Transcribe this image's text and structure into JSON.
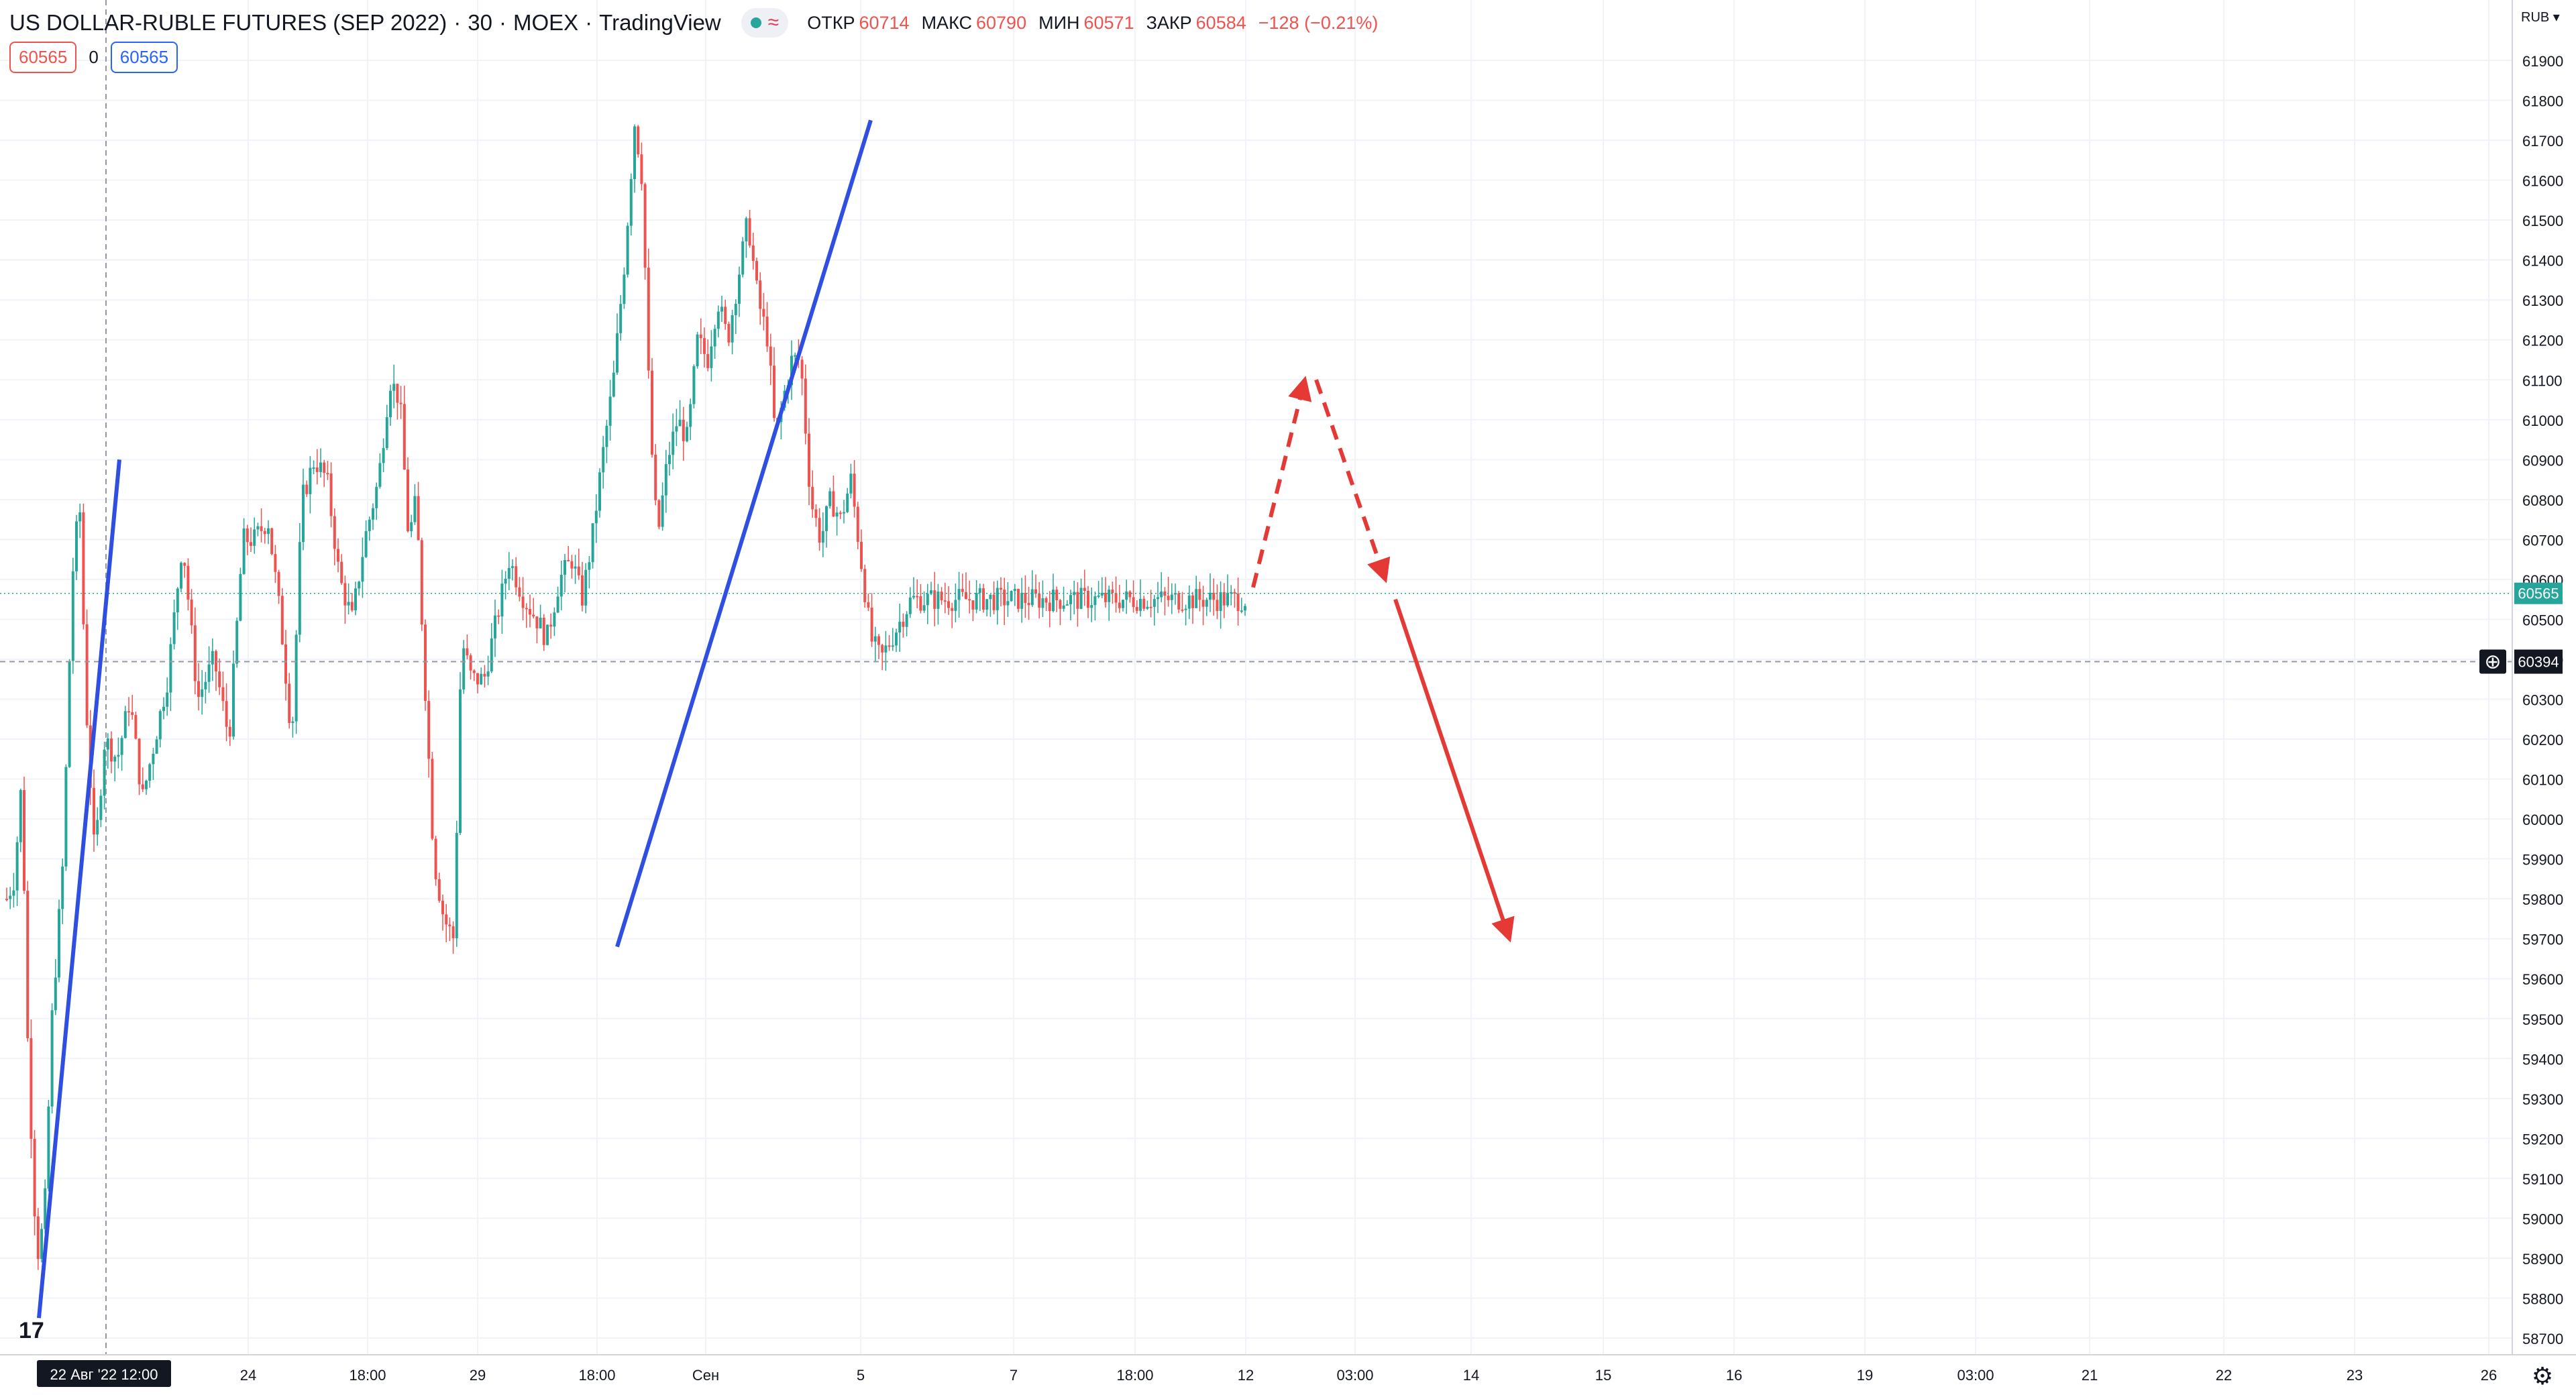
{
  "header": {
    "title": "US DOLLAR-RUBLE FUTURES (SEP 2022)",
    "interval": "30",
    "exchange": "MOEX",
    "source": "TradingView",
    "ohlc": {
      "open_label": "ОТКР",
      "open": "60714",
      "high_label": "МАКС",
      "high": "60790",
      "low_label": "МИН",
      "low": "60571",
      "close_label": "ЗАКР",
      "close": "60584",
      "change": "−128 (−0.21%)"
    },
    "sell_price": "60565",
    "spread": "0",
    "buy_price": "60565"
  },
  "colors": {
    "up": "#26a69a",
    "down": "#ef5350",
    "trendline": "#2f4fe0",
    "forecast": "#e53935",
    "grid": "#f0f3fa",
    "last_price_bg": "#26a69a"
  },
  "chart_data": {
    "type": "candlestick",
    "symbol": "US DOLLAR-RUBLE FUTURES (SEP 2022)",
    "currency": "RUB",
    "ylim": [
      58700,
      61950
    ],
    "y_ticks": [
      58700,
      58800,
      58900,
      59000,
      59100,
      59200,
      59300,
      59400,
      59500,
      59600,
      59700,
      59800,
      59900,
      60000,
      60100,
      60200,
      60300,
      60400,
      60500,
      60600,
      60700,
      60800,
      60900,
      61000,
      61100,
      61200,
      61300,
      61400,
      61500,
      61600,
      61700,
      61800,
      61900
    ],
    "x_ticks": [
      "22 Авг '22",
      "12:00",
      "24",
      "18:00",
      "29",
      "18:00",
      "Сен",
      "5",
      "7",
      "18:00",
      "12",
      "03:00",
      "14",
      "15",
      "16",
      "19",
      "03:00",
      "21",
      "22",
      "23",
      "26"
    ],
    "crosshair_x_label": "22 Авг '22  12:00",
    "last_price": 60565,
    "crosshair_price": 60394,
    "price_series_anchors": [
      [
        0.0,
        59800
      ],
      [
        0.006,
        59850
      ],
      [
        0.012,
        60100
      ],
      [
        0.017,
        59400
      ],
      [
        0.024,
        58900
      ],
      [
        0.03,
        59000
      ],
      [
        0.036,
        59500
      ],
      [
        0.045,
        59900
      ],
      [
        0.052,
        60600
      ],
      [
        0.058,
        60800
      ],
      [
        0.063,
        60300
      ],
      [
        0.07,
        59900
      ],
      [
        0.078,
        60200
      ],
      [
        0.088,
        60150
      ],
      [
        0.098,
        60300
      ],
      [
        0.108,
        60050
      ],
      [
        0.118,
        60200
      ],
      [
        0.128,
        60350
      ],
      [
        0.14,
        60700
      ],
      [
        0.152,
        60300
      ],
      [
        0.165,
        60400
      ],
      [
        0.177,
        60200
      ],
      [
        0.188,
        60700
      ],
      [
        0.197,
        60700
      ],
      [
        0.208,
        60750
      ],
      [
        0.218,
        60500
      ],
      [
        0.227,
        60200
      ],
      [
        0.235,
        60800
      ],
      [
        0.245,
        60900
      ],
      [
        0.255,
        60850
      ],
      [
        0.265,
        60600
      ],
      [
        0.275,
        60500
      ],
      [
        0.285,
        60700
      ],
      [
        0.296,
        60850
      ],
      [
        0.305,
        61100
      ],
      [
        0.313,
        61050
      ],
      [
        0.32,
        60700
      ],
      [
        0.326,
        60800
      ],
      [
        0.332,
        60400
      ],
      [
        0.34,
        59900
      ],
      [
        0.348,
        59750
      ],
      [
        0.356,
        59700
      ],
      [
        0.362,
        60450
      ],
      [
        0.37,
        60350
      ],
      [
        0.38,
        60350
      ],
      [
        0.39,
        60500
      ],
      [
        0.4,
        60650
      ],
      [
        0.412,
        60550
      ],
      [
        0.422,
        60500
      ],
      [
        0.43,
        60450
      ],
      [
        0.44,
        60600
      ],
      [
        0.45,
        60650
      ],
      [
        0.458,
        60550
      ],
      [
        0.466,
        60700
      ],
      [
        0.474,
        60900
      ],
      [
        0.483,
        61100
      ],
      [
        0.492,
        61400
      ],
      [
        0.5,
        61750
      ],
      [
        0.506,
        61600
      ],
      [
        0.512,
        61000
      ],
      [
        0.518,
        60700
      ],
      [
        0.526,
        60900
      ],
      [
        0.534,
        61000
      ],
      [
        0.542,
        60950
      ],
      [
        0.55,
        61200
      ],
      [
        0.558,
        61150
      ],
      [
        0.566,
        61300
      ],
      [
        0.574,
        61200
      ],
      [
        0.582,
        61350
      ],
      [
        0.59,
        61500
      ],
      [
        0.598,
        61300
      ],
      [
        0.606,
        61200
      ],
      [
        0.612,
        60950
      ],
      [
        0.618,
        61050
      ],
      [
        0.625,
        61150
      ],
      [
        0.632,
        61150
      ],
      [
        0.64,
        60800
      ],
      [
        0.648,
        60700
      ],
      [
        0.656,
        60800
      ],
      [
        0.664,
        60750
      ],
      [
        0.672,
        60850
      ],
      [
        0.68,
        60650
      ],
      [
        0.688,
        60450
      ],
      [
        0.696,
        60400
      ],
      [
        0.704,
        60450
      ],
      [
        0.712,
        60500
      ],
      [
        0.72,
        60550
      ]
    ],
    "trendlines": [
      {
        "from": [
          "22 Авг '22",
          58750
        ],
        "to": [
          "22 Авг '22 12:00+",
          60900
        ]
      },
      {
        "from": [
          "31 Авг 18:00",
          59680
        ],
        "to": [
          "5 Сен",
          61750
        ]
      }
    ],
    "forecast_path": [
      {
        "style": "dashed",
        "from_price": 60580,
        "to_price": 61100
      },
      {
        "style": "dashed",
        "from_price": 61100,
        "to_price": 60600
      },
      {
        "style": "solid",
        "from_price": 60550,
        "to_price": 59700
      }
    ],
    "grid": true,
    "axis_position": "right"
  }
}
